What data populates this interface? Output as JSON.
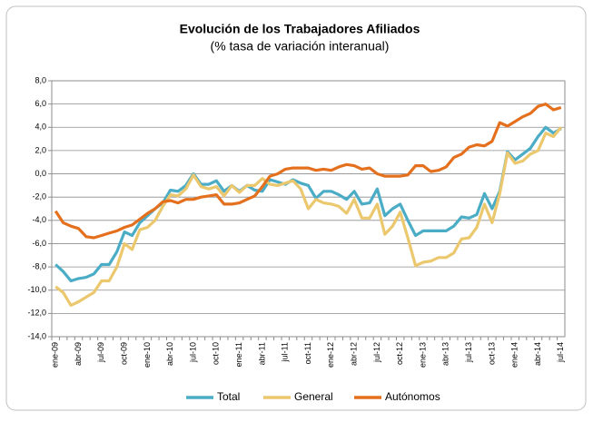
{
  "chart_data": {
    "type": "line",
    "title": "Evolución de  los Trabajadores Afiliados",
    "subtitle": "(% tasa de variación interanual)",
    "categories": [
      "ene-09",
      null,
      null,
      "abr-09",
      null,
      null,
      "jul-09",
      null,
      null,
      "oct-09",
      null,
      null,
      "ene-10",
      null,
      null,
      "abr-10",
      null,
      null,
      "jul-10",
      null,
      null,
      "oct-10",
      null,
      null,
      "ene-11",
      null,
      null,
      "abr-11",
      null,
      null,
      "jul-11",
      null,
      null,
      "oct-11",
      null,
      null,
      "ene-12",
      null,
      null,
      "abr-12",
      null,
      null,
      "jul-12",
      null,
      null,
      "oct-12",
      null,
      null,
      "ene-13",
      null,
      null,
      "abr-13",
      null,
      null,
      "jul-13",
      null,
      null,
      "oct-13",
      null,
      null,
      "ene-14",
      null,
      null,
      "abr-14",
      null,
      null,
      "jul-14"
    ],
    "series": [
      {
        "name": "Total",
        "color": "#4bacc6",
        "values": [
          -7.8,
          -8.4,
          -9.2,
          -9.0,
          -8.9,
          -8.6,
          -7.8,
          -7.8,
          -6.7,
          -5.0,
          -5.3,
          -4.2,
          -3.6,
          -3.0,
          -2.5,
          -1.4,
          -1.5,
          -1.0,
          0.0,
          -0.9,
          -0.9,
          -0.6,
          -1.5,
          -1.0,
          -1.5,
          -1.0,
          -1.4,
          -1.5,
          -0.5,
          -0.7,
          -0.9,
          -0.5,
          -0.8,
          -1.0,
          -2.1,
          -1.5,
          -1.5,
          -1.8,
          -2.2,
          -1.5,
          -2.6,
          -2.5,
          -1.3,
          -3.6,
          -3.0,
          -2.6,
          -4.0,
          -5.3,
          -4.9,
          -4.9,
          -4.9,
          -4.9,
          -4.5,
          -3.7,
          -3.8,
          -3.5,
          -1.7,
          -3.0,
          -1.5,
          1.9,
          1.2,
          1.7,
          2.2,
          3.2,
          4.0,
          3.5,
          3.9
        ]
      },
      {
        "name": "General",
        "color": "#ebc86e",
        "values": [
          -9.7,
          -10.2,
          -11.3,
          -11.0,
          -10.6,
          -10.2,
          -9.2,
          -9.2,
          -8.0,
          -6.0,
          -6.5,
          -4.8,
          -4.6,
          -4.0,
          -2.8,
          -1.8,
          -1.9,
          -1.3,
          -0.1,
          -1.1,
          -1.3,
          -1.1,
          -1.9,
          -1.0,
          -1.6,
          -1.0,
          -1.0,
          -0.4,
          -0.9,
          -1.0,
          -0.8,
          -0.6,
          -1.3,
          -3.0,
          -2.2,
          -2.5,
          -2.6,
          -2.8,
          -3.4,
          -2.2,
          -3.8,
          -3.8,
          -2.6,
          -5.2,
          -4.5,
          -3.3,
          -5.5,
          -7.9,
          -7.6,
          -7.5,
          -7.2,
          -7.2,
          -6.8,
          -5.6,
          -5.5,
          -4.6,
          -2.6,
          -4.2,
          -1.7,
          1.8,
          0.9,
          1.1,
          1.7,
          2.0,
          3.5,
          3.2,
          4.0
        ]
      },
      {
        "name": "Autónomos",
        "color": "#e4701e",
        "values": [
          -3.2,
          -4.2,
          -4.5,
          -4.7,
          -5.4,
          -5.5,
          -5.3,
          -5.1,
          -4.9,
          -4.6,
          -4.4,
          -3.9,
          -3.4,
          -3.0,
          -2.4,
          -2.3,
          -2.5,
          -2.2,
          -2.2,
          -2.0,
          -1.9,
          -1.8,
          -2.6,
          -2.6,
          -2.5,
          -2.2,
          -1.9,
          -1.1,
          -0.2,
          0.0,
          0.4,
          0.5,
          0.5,
          0.5,
          0.3,
          0.4,
          0.3,
          0.6,
          0.8,
          0.7,
          0.4,
          0.5,
          0.0,
          -0.2,
          -0.2,
          -0.2,
          -0.1,
          0.7,
          0.7,
          0.2,
          0.3,
          0.6,
          1.4,
          1.7,
          2.3,
          2.5,
          2.4,
          2.8,
          4.4,
          4.1,
          4.5,
          4.9,
          5.2,
          5.8,
          6.0,
          5.5,
          5.7
        ]
      }
    ],
    "ylim": [
      -14,
      8
    ],
    "yticks": [
      {
        "value": -14,
        "label": "-14,0"
      },
      {
        "value": -12,
        "label": "-12,0"
      },
      {
        "value": -10,
        "label": "-10,0"
      },
      {
        "value": -8,
        "label": "-8,0"
      },
      {
        "value": -6,
        "label": "-6,0"
      },
      {
        "value": -4,
        "label": "-4,0"
      },
      {
        "value": -2,
        "label": "-2,0"
      },
      {
        "value": 0,
        "label": "0,0"
      },
      {
        "value": 2,
        "label": "2,0"
      },
      {
        "value": 4,
        "label": "4,0"
      },
      {
        "value": 6,
        "label": "6,0"
      },
      {
        "value": 8,
        "label": "8,0"
      }
    ],
    "grid": true,
    "legend": "bottom"
  }
}
